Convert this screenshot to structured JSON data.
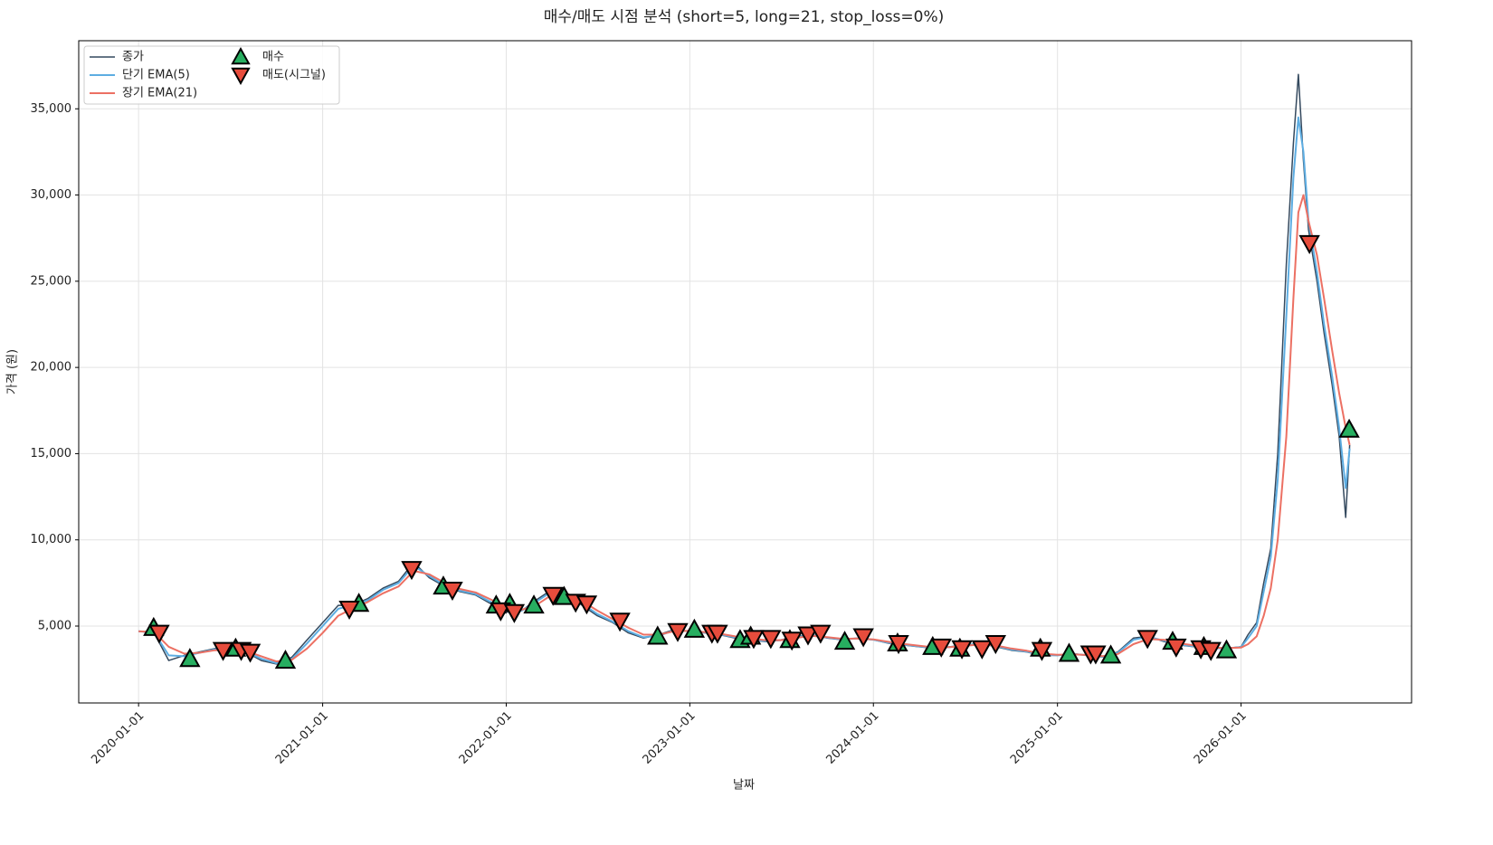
{
  "chart_data": {
    "type": "line",
    "title": "매수/매도 시점 분석 (short=5, long=21, stop_loss=0%)",
    "x_label": "날짜",
    "y_label": "가격 (원)",
    "x": [
      "2020-01-01",
      "2020-02-01",
      "2020-03-01",
      "2020-04-01",
      "2020-05-01",
      "2020-06-01",
      "2020-07-01",
      "2020-08-01",
      "2020-09-01",
      "2020-10-01",
      "2020-11-01",
      "2020-12-01",
      "2021-01-01",
      "2021-02-01",
      "2021-03-01",
      "2021-04-01",
      "2021-05-01",
      "2021-06-01",
      "2021-07-01",
      "2021-08-01",
      "2021-09-01",
      "2021-10-01",
      "2021-11-01",
      "2021-12-01",
      "2022-01-01",
      "2022-02-01",
      "2022-03-01",
      "2022-04-01",
      "2022-05-01",
      "2022-06-01",
      "2022-07-01",
      "2022-08-01",
      "2022-09-01",
      "2022-10-01",
      "2022-11-01",
      "2022-12-01",
      "2023-01-01",
      "2023-02-01",
      "2023-03-01",
      "2023-04-01",
      "2023-05-01",
      "2023-06-01",
      "2023-07-01",
      "2023-08-01",
      "2023-09-01",
      "2023-10-01",
      "2023-11-01",
      "2023-12-01",
      "2024-01-01",
      "2024-02-01",
      "2024-03-01",
      "2024-04-01",
      "2024-05-01",
      "2024-06-01",
      "2024-07-01",
      "2024-08-01",
      "2024-09-01",
      "2024-10-01",
      "2024-11-01",
      "2024-12-01",
      "2025-01-01",
      "2025-02-01",
      "2025-03-01",
      "2025-04-01",
      "2025-05-01",
      "2025-06-01",
      "2025-07-01",
      "2025-08-01",
      "2025-09-01",
      "2025-10-01",
      "2025-11-01",
      "2025-12-01",
      "2026-01-01",
      "2026-01-15",
      "2026-02-01",
      "2026-02-15",
      "2026-03-01",
      "2026-03-15",
      "2026-04-01",
      "2026-04-15",
      "2026-04-25",
      "2026-05-05",
      "2026-05-15",
      "2026-06-01",
      "2026-06-15",
      "2026-07-01",
      "2026-07-15",
      "2026-07-28",
      "2026-08-05"
    ],
    "series": [
      {
        "name": "종가",
        "color": "#34495e",
        "width": 1.5,
        "values": [
          4700,
          4600,
          3000,
          3300,
          3500,
          3700,
          3600,
          3500,
          3000,
          2800,
          3200,
          4200,
          5200,
          6200,
          6200,
          6600,
          7200,
          7600,
          8700,
          7800,
          7300,
          7000,
          6800,
          6300,
          5800,
          5900,
          6500,
          7100,
          6800,
          6200,
          5600,
          5200,
          4600,
          4300,
          4500,
          4800,
          4700,
          4600,
          4500,
          4300,
          4200,
          4100,
          4200,
          4400,
          4500,
          4300,
          4200,
          4300,
          4200,
          4000,
          3900,
          3800,
          3700,
          3800,
          3900,
          4000,
          3800,
          3600,
          3500,
          3300,
          3300,
          3400,
          3300,
          3200,
          3500,
          4300,
          4400,
          4100,
          3900,
          3800,
          3700,
          3700,
          3800,
          4500,
          5200,
          7500,
          9500,
          15000,
          26000,
          33000,
          37000,
          32000,
          28000,
          25000,
          22000,
          19000,
          16000,
          11300,
          15500
        ]
      },
      {
        "name": "단기 EMA(5)",
        "color": "#5dade2",
        "width": 2,
        "values": [
          4700,
          4620,
          3300,
          3250,
          3450,
          3650,
          3620,
          3520,
          3100,
          2850,
          3100,
          4000,
          5000,
          6000,
          6200,
          6500,
          7100,
          7500,
          8500,
          7900,
          7350,
          7050,
          6850,
          6400,
          5900,
          5900,
          6400,
          7000,
          6850,
          6300,
          5700,
          5250,
          4700,
          4350,
          4450,
          4750,
          4700,
          4620,
          4520,
          4350,
          4230,
          4130,
          4180,
          4370,
          4470,
          4330,
          4220,
          4290,
          4210,
          4030,
          3920,
          3820,
          3720,
          3780,
          3880,
          3980,
          3830,
          3640,
          3520,
          3330,
          3300,
          3380,
          3310,
          3220,
          3450,
          4200,
          4380,
          4150,
          3930,
          3820,
          3720,
          3700,
          3780,
          4300,
          5000,
          7000,
          9000,
          13500,
          23000,
          31000,
          34500,
          32500,
          28500,
          25500,
          22500,
          19500,
          16500,
          13000,
          15300
        ]
      },
      {
        "name": "장기 EMA(21)",
        "color": "#ec7063",
        "width": 2,
        "values": [
          4700,
          4650,
          3800,
          3400,
          3450,
          3600,
          3620,
          3560,
          3250,
          2950,
          3050,
          3700,
          4600,
          5600,
          6000,
          6400,
          6900,
          7300,
          8200,
          8000,
          7500,
          7150,
          6950,
          6550,
          6100,
          5950,
          6200,
          6800,
          6900,
          6450,
          5900,
          5400,
          4900,
          4500,
          4500,
          4700,
          4720,
          4650,
          4560,
          4400,
          4280,
          4180,
          4180,
          4320,
          4430,
          4360,
          4260,
          4280,
          4230,
          4080,
          3960,
          3860,
          3760,
          3780,
          3850,
          3940,
          3870,
          3700,
          3570,
          3400,
          3330,
          3360,
          3320,
          3260,
          3380,
          3950,
          4250,
          4200,
          4000,
          3870,
          3760,
          3720,
          3750,
          3950,
          4400,
          5600,
          7200,
          10000,
          16000,
          24000,
          29000,
          30000,
          28500,
          26500,
          24000,
          21000,
          18500,
          16500,
          15500
        ]
      }
    ],
    "markers": [
      {
        "name": "매수",
        "type": "scatter",
        "shape": "up",
        "color": "#27ae60",
        "x": [
          "2020-01-31",
          "2020-04-12",
          "2020-07-12",
          "2020-10-19",
          "2021-03-14",
          "2021-08-29",
          "2021-12-12",
          "2022-01-08",
          "2022-02-25",
          "2022-04-26",
          "2022-10-29",
          "2023-01-10",
          "2023-04-11",
          "2023-05-02",
          "2023-07-19",
          "2023-11-05",
          "2024-02-18",
          "2024-04-28",
          "2024-06-21",
          "2024-11-28",
          "2025-01-24",
          "2025-04-17",
          "2025-08-18",
          "2025-10-19",
          "2025-12-03",
          "2026-08-04"
        ],
        "values": [
          4900,
          3100,
          3700,
          3000,
          6300,
          7300,
          6200,
          6300,
          6200,
          6700,
          4400,
          4800,
          4200,
          4400,
          4200,
          4100,
          4000,
          3800,
          3700,
          3700,
          3400,
          3300,
          4100,
          3800,
          3600,
          16400
        ]
      },
      {
        "name": "매도(시그널)",
        "type": "scatter",
        "shape": "down",
        "color": "#e74c3c",
        "x": [
          "2020-02-11",
          "2020-06-17",
          "2020-07-23",
          "2020-08-10",
          "2021-02-23",
          "2021-06-27",
          "2021-09-16",
          "2021-12-21",
          "2022-01-17",
          "2022-04-04",
          "2022-05-19",
          "2022-06-10",
          "2022-08-15",
          "2022-12-08",
          "2023-02-14",
          "2023-02-25",
          "2023-05-08",
          "2023-06-11",
          "2023-07-23",
          "2023-08-24",
          "2023-09-18",
          "2023-12-12",
          "2024-02-20",
          "2024-05-15",
          "2024-06-25",
          "2024-08-04",
          "2024-08-31",
          "2024-12-01",
          "2025-03-08",
          "2025-03-18",
          "2025-06-29",
          "2025-08-25",
          "2025-10-13",
          "2025-11-02",
          "2026-05-17"
        ],
        "values": [
          4600,
          3600,
          3600,
          3500,
          6000,
          8300,
          7100,
          5900,
          5800,
          6800,
          6400,
          6300,
          5300,
          4700,
          4600,
          4600,
          4300,
          4300,
          4200,
          4500,
          4600,
          4400,
          4000,
          3800,
          3700,
          3700,
          4000,
          3600,
          3400,
          3400,
          4300,
          3800,
          3700,
          3600,
          27200
        ]
      }
    ],
    "xlim": [
      "2019-09-04",
      "2026-12-06"
    ],
    "xticks": [
      "2020-01-01",
      "2021-01-01",
      "2022-01-01",
      "2023-01-01",
      "2024-01-01",
      "2025-01-01",
      "2026-01-01"
    ],
    "ylim": [
      540,
      38950
    ],
    "yticks": [
      {
        "value": 5000,
        "label": "5,000"
      },
      {
        "value": 10000,
        "label": "10,000"
      },
      {
        "value": 15000,
        "label": "15,000"
      },
      {
        "value": 20000,
        "label": "20,000"
      },
      {
        "value": 25000,
        "label": "25,000"
      },
      {
        "value": 30000,
        "label": "30,000"
      },
      {
        "value": 35000,
        "label": "35,000"
      }
    ],
    "grid": true,
    "legend": "upper left"
  }
}
